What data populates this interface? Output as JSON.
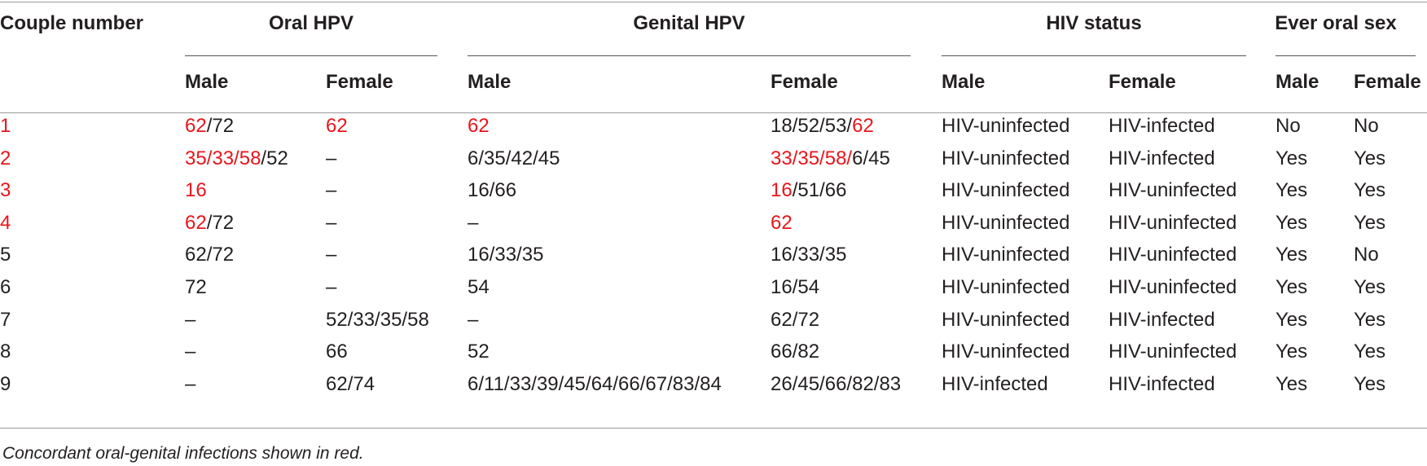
{
  "colors": {
    "concordant": "#e8151b",
    "text": "#231f20",
    "rules": "#9a9a9a"
  },
  "table": {
    "group_headers": {
      "couple": "Couple number",
      "oral": "Oral HPV",
      "genital": "Genital HPV",
      "hiv": "HIV status",
      "oral_sex": "Ever oral sex"
    },
    "sub_headers": [
      "Male",
      "Female",
      "Male",
      "Female",
      "Male",
      "Female",
      "Male",
      "Female"
    ],
    "rows": [
      [
        [
          {
            "t": "1",
            "r": true
          }
        ],
        [
          {
            "t": "62",
            "r": true
          },
          {
            "t": "/72",
            "r": false
          }
        ],
        [
          {
            "t": "62",
            "r": true
          }
        ],
        [
          {
            "t": "62",
            "r": true
          }
        ],
        [
          {
            "t": "18/52/53/",
            "r": false
          },
          {
            "t": "62",
            "r": true
          }
        ],
        [
          {
            "t": "HIV-uninfected",
            "r": false
          }
        ],
        [
          {
            "t": "HIV-infected",
            "r": false
          }
        ],
        [
          {
            "t": "No",
            "r": false
          }
        ],
        [
          {
            "t": "No",
            "r": false
          }
        ]
      ],
      [
        [
          {
            "t": "2",
            "r": true
          }
        ],
        [
          {
            "t": "35/33/58",
            "r": true
          },
          {
            "t": "/52",
            "r": false
          }
        ],
        [
          {
            "t": "–",
            "r": false
          }
        ],
        [
          {
            "t": "6/35/42/45",
            "r": false
          }
        ],
        [
          {
            "t": "33/35/58/",
            "r": true
          },
          {
            "t": "6/45",
            "r": false
          }
        ],
        [
          {
            "t": "HIV-uninfected",
            "r": false
          }
        ],
        [
          {
            "t": "HIV-infected",
            "r": false
          }
        ],
        [
          {
            "t": "Yes",
            "r": false
          }
        ],
        [
          {
            "t": "Yes",
            "r": false
          }
        ]
      ],
      [
        [
          {
            "t": "3",
            "r": true
          }
        ],
        [
          {
            "t": "16",
            "r": true
          }
        ],
        [
          {
            "t": "–",
            "r": false
          }
        ],
        [
          {
            "t": "16/66",
            "r": false
          }
        ],
        [
          {
            "t": "16",
            "r": true
          },
          {
            "t": "/51/66",
            "r": false
          }
        ],
        [
          {
            "t": "HIV-uninfected",
            "r": false
          }
        ],
        [
          {
            "t": "HIV-uninfected",
            "r": false
          }
        ],
        [
          {
            "t": "Yes",
            "r": false
          }
        ],
        [
          {
            "t": "Yes",
            "r": false
          }
        ]
      ],
      [
        [
          {
            "t": "4",
            "r": true
          }
        ],
        [
          {
            "t": "62",
            "r": true
          },
          {
            "t": "/72",
            "r": false
          }
        ],
        [
          {
            "t": "–",
            "r": false
          }
        ],
        [
          {
            "t": "–",
            "r": false
          }
        ],
        [
          {
            "t": "62",
            "r": true
          }
        ],
        [
          {
            "t": "HIV-uninfected",
            "r": false
          }
        ],
        [
          {
            "t": "HIV-uninfected",
            "r": false
          }
        ],
        [
          {
            "t": "Yes",
            "r": false
          }
        ],
        [
          {
            "t": "Yes",
            "r": false
          }
        ]
      ],
      [
        [
          {
            "t": "5",
            "r": false
          }
        ],
        [
          {
            "t": "62/72",
            "r": false
          }
        ],
        [
          {
            "t": "–",
            "r": false
          }
        ],
        [
          {
            "t": "16/33/35",
            "r": false
          }
        ],
        [
          {
            "t": "16/33/35",
            "r": false
          }
        ],
        [
          {
            "t": "HIV-uninfected",
            "r": false
          }
        ],
        [
          {
            "t": "HIV-uninfected",
            "r": false
          }
        ],
        [
          {
            "t": "Yes",
            "r": false
          }
        ],
        [
          {
            "t": "No",
            "r": false
          }
        ]
      ],
      [
        [
          {
            "t": "6",
            "r": false
          }
        ],
        [
          {
            "t": "72",
            "r": false
          }
        ],
        [
          {
            "t": "–",
            "r": false
          }
        ],
        [
          {
            "t": "54",
            "r": false
          }
        ],
        [
          {
            "t": "16/54",
            "r": false
          }
        ],
        [
          {
            "t": "HIV-uninfected",
            "r": false
          }
        ],
        [
          {
            "t": "HIV-uninfected",
            "r": false
          }
        ],
        [
          {
            "t": "Yes",
            "r": false
          }
        ],
        [
          {
            "t": "Yes",
            "r": false
          }
        ]
      ],
      [
        [
          {
            "t": "7",
            "r": false
          }
        ],
        [
          {
            "t": "–",
            "r": false
          }
        ],
        [
          {
            "t": "52/33/35/58",
            "r": false
          }
        ],
        [
          {
            "t": "–",
            "r": false
          }
        ],
        [
          {
            "t": "62/72",
            "r": false
          }
        ],
        [
          {
            "t": "HIV-uninfected",
            "r": false
          }
        ],
        [
          {
            "t": "HIV-infected",
            "r": false
          }
        ],
        [
          {
            "t": "Yes",
            "r": false
          }
        ],
        [
          {
            "t": "Yes",
            "r": false
          }
        ]
      ],
      [
        [
          {
            "t": "8",
            "r": false
          }
        ],
        [
          {
            "t": "–",
            "r": false
          }
        ],
        [
          {
            "t": "66",
            "r": false
          }
        ],
        [
          {
            "t": "52",
            "r": false
          }
        ],
        [
          {
            "t": "66/82",
            "r": false
          }
        ],
        [
          {
            "t": "HIV-uninfected",
            "r": false
          }
        ],
        [
          {
            "t": "HIV-uninfected",
            "r": false
          }
        ],
        [
          {
            "t": "Yes",
            "r": false
          }
        ],
        [
          {
            "t": "Yes",
            "r": false
          }
        ]
      ],
      [
        [
          {
            "t": "9",
            "r": false
          }
        ],
        [
          {
            "t": "–",
            "r": false
          }
        ],
        [
          {
            "t": "62/74",
            "r": false
          }
        ],
        [
          {
            "t": "6/11/33/39/45/64/66/67/83/84",
            "r": false
          }
        ],
        [
          {
            "t": "26/45/66/82/83",
            "r": false
          }
        ],
        [
          {
            "t": "HIV-infected",
            "r": false
          }
        ],
        [
          {
            "t": "HIV-infected",
            "r": false
          }
        ],
        [
          {
            "t": "Yes",
            "r": false
          }
        ],
        [
          {
            "t": "Yes",
            "r": false
          }
        ]
      ]
    ],
    "footnote": "Concordant oral-genital infections shown in red."
  }
}
